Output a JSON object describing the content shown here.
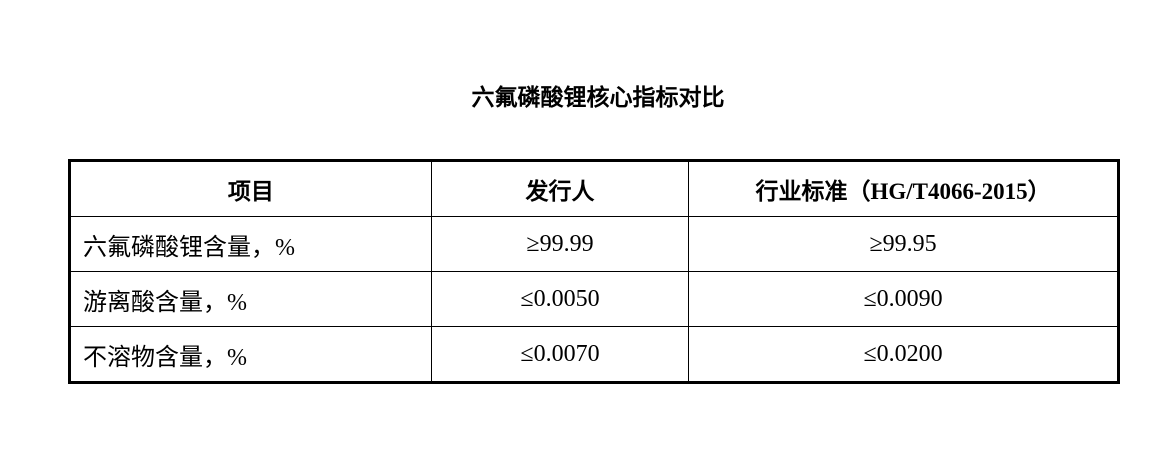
{
  "title": "六氟磷酸锂核心指标对比",
  "table": {
    "headers": [
      "项目",
      "发行人",
      "行业标准（HG/T4066-2015）"
    ],
    "rows": [
      [
        "六氟磷酸锂含量，%",
        "≥99.99",
        "≥99.95"
      ],
      [
        "游离酸含量，%",
        "≤0.0050",
        "≤0.0090"
      ],
      [
        "不溶物含量，%",
        "≤0.0070",
        "≤0.0200"
      ]
    ]
  }
}
